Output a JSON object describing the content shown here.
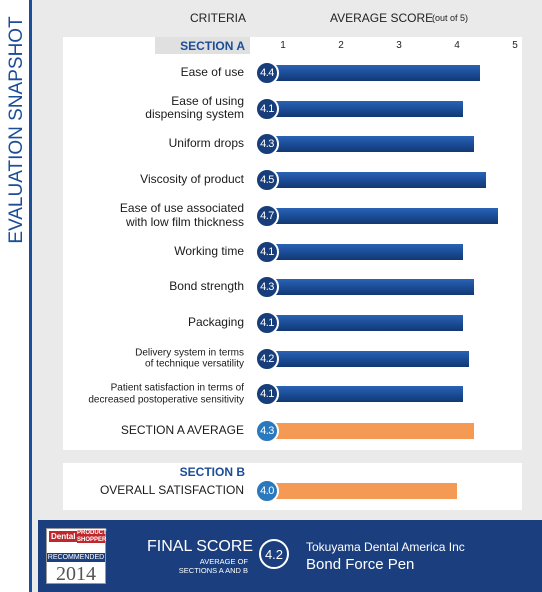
{
  "chart_data": {
    "type": "bar",
    "title": "EVALUATION SNAPSHOT",
    "category_header": "CRITERIA",
    "xlabel": "AVERAGE SCORE",
    "xlabel_note": "(out of 5)",
    "xlim": [
      1,
      5
    ],
    "xticks": [
      1,
      2,
      3,
      4,
      5
    ],
    "sections": [
      {
        "name": "SECTION A",
        "categories": [
          "Ease of use",
          "Ease of using dispensing system",
          "Uniform drops",
          "Viscosity of product",
          "Ease of use associated with low film thickness",
          "Working time",
          "Bond strength",
          "Packaging",
          "Delivery system in terms of technique versatility",
          "Patient satisfaction in terms of decreased postoperative sensitivity"
        ],
        "values": [
          4.4,
          4.1,
          4.3,
          4.5,
          4.7,
          4.1,
          4.3,
          4.1,
          4.2,
          4.1
        ],
        "color": "#1b4d98",
        "average_label": "SECTION A AVERAGE",
        "average": 4.3,
        "average_color": "#f59a55"
      },
      {
        "name": "SECTION B",
        "categories": [
          "OVERALL SATISFACTION"
        ],
        "values": [
          4
        ],
        "value_labels": [
          "4.0"
        ],
        "color": "#f59a55"
      }
    ],
    "final": {
      "label": "FINAL SCORE",
      "note": "AVERAGE OF SECTIONS A AND B",
      "value": 4.2,
      "company": "Tokuyama Dental America Inc",
      "product": "Bond Force Pen"
    },
    "badge": {
      "brand": "Dental",
      "brand_sub": "PRODUCT SHOPPER",
      "text": "RECOMMENDED",
      "year": "2014"
    }
  }
}
